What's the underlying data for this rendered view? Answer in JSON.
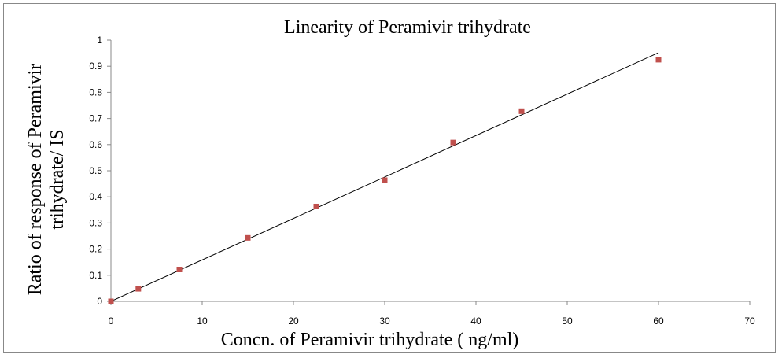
{
  "chart_data": {
    "type": "scatter",
    "title": "Linearity of  Peramivir trihydrate",
    "xlabel": "Concn. of Peramivir trihydrate   ( ng/ml)",
    "ylabel_lines": [
      "Ratio of response of Peramivir",
      "trihydrate/ IS"
    ],
    "xlim": [
      0,
      70
    ],
    "ylim": [
      0,
      1
    ],
    "x_ticks": [
      "0",
      "10",
      "20",
      "30",
      "40",
      "50",
      "60",
      "70"
    ],
    "y_ticks": [
      "0",
      "0.1",
      "0.2",
      "0.3",
      "0.4",
      "0.5",
      "0.6",
      "0.7",
      "0.8",
      "0.9",
      "1"
    ],
    "grid": false,
    "series": [
      {
        "points": [
          {
            "x": 0,
            "y": 0.0
          },
          {
            "x": 3,
            "y": 0.048
          },
          {
            "x": 7.5,
            "y": 0.122
          },
          {
            "x": 15,
            "y": 0.243
          },
          {
            "x": 22.5,
            "y": 0.363
          },
          {
            "x": 30,
            "y": 0.464
          },
          {
            "x": 37.5,
            "y": 0.608
          },
          {
            "x": 45,
            "y": 0.728
          },
          {
            "x": 60,
            "y": 0.925
          }
        ],
        "marker_color": "#c0504d"
      }
    ],
    "trendline": {
      "x": [
        0,
        60
      ],
      "y": [
        0,
        0.952
      ],
      "color": "#000000"
    }
  }
}
